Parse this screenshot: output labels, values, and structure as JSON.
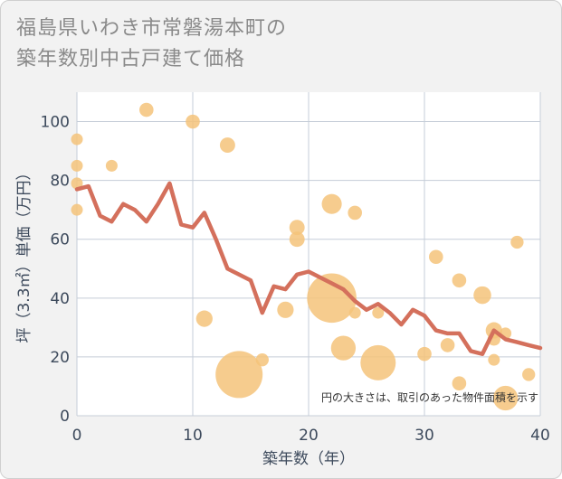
{
  "title_lines": [
    "福島県いわき市常磐湯本町の",
    "築年数別中古戸建て価格"
  ],
  "chart_data": {
    "type": "scatter",
    "xlabel": "築年数（年）",
    "ylabel": "坪（3.3㎡）単価（万円）",
    "xlim": [
      0,
      40
    ],
    "ylim": [
      0,
      110
    ],
    "xticks": [
      0,
      10,
      20,
      30,
      40
    ],
    "yticks": [
      0,
      20,
      40,
      60,
      80,
      100
    ],
    "grid": true,
    "annotation": "円の大きさは、取引のあった物件面積を示す",
    "colors": {
      "bubble": "#f5c37a",
      "line": "#d4705c",
      "grid": "#c5cdd8",
      "background": "#ffffff"
    },
    "bubbles": [
      {
        "x": 0,
        "y": 94,
        "s": 1
      },
      {
        "x": 0,
        "y": 85,
        "s": 1
      },
      {
        "x": 0,
        "y": 79,
        "s": 1
      },
      {
        "x": 0,
        "y": 70,
        "s": 1
      },
      {
        "x": 3,
        "y": 85,
        "s": 1
      },
      {
        "x": 6,
        "y": 104,
        "s": 1.2
      },
      {
        "x": 10,
        "y": 100,
        "s": 1.2
      },
      {
        "x": 11,
        "y": 33,
        "s": 1.4
      },
      {
        "x": 13,
        "y": 92,
        "s": 1.3
      },
      {
        "x": 14,
        "y": 14,
        "s": 4
      },
      {
        "x": 16,
        "y": 19,
        "s": 1.1
      },
      {
        "x": 18,
        "y": 36,
        "s": 1.4
      },
      {
        "x": 19,
        "y": 64,
        "s": 1.3
      },
      {
        "x": 19,
        "y": 60,
        "s": 1.3
      },
      {
        "x": 22,
        "y": 72,
        "s": 1.7
      },
      {
        "x": 22,
        "y": 40,
        "s": 4.2
      },
      {
        "x": 23,
        "y": 23,
        "s": 2.1
      },
      {
        "x": 24,
        "y": 69,
        "s": 1.2
      },
      {
        "x": 24,
        "y": 35,
        "s": 1
      },
      {
        "x": 26,
        "y": 18,
        "s": 3
      },
      {
        "x": 26,
        "y": 35,
        "s": 1
      },
      {
        "x": 30,
        "y": 21,
        "s": 1.2
      },
      {
        "x": 31,
        "y": 54,
        "s": 1.2
      },
      {
        "x": 32,
        "y": 24,
        "s": 1.2
      },
      {
        "x": 33,
        "y": 46,
        "s": 1.2
      },
      {
        "x": 33,
        "y": 11,
        "s": 1.2
      },
      {
        "x": 35,
        "y": 41,
        "s": 1.5
      },
      {
        "x": 36,
        "y": 29,
        "s": 1.4
      },
      {
        "x": 36,
        "y": 26,
        "s": 1.1
      },
      {
        "x": 36,
        "y": 19,
        "s": 1
      },
      {
        "x": 37,
        "y": 6,
        "s": 2.1
      },
      {
        "x": 37,
        "y": 28,
        "s": 1
      },
      {
        "x": 38,
        "y": 59,
        "s": 1.1
      },
      {
        "x": 39,
        "y": 14,
        "s": 1.1
      }
    ],
    "line": {
      "x": [
        0,
        1,
        2,
        3,
        4,
        5,
        6,
        7,
        8,
        9,
        10,
        11,
        12,
        13,
        14,
        15,
        16,
        17,
        18,
        19,
        20,
        21,
        22,
        23,
        24,
        25,
        26,
        27,
        28,
        29,
        30,
        31,
        32,
        33,
        34,
        35,
        36,
        37,
        38,
        39,
        40
      ],
      "y": [
        77,
        78,
        68,
        66,
        72,
        70,
        66,
        72,
        79,
        65,
        64,
        69,
        60,
        50,
        48,
        46,
        35,
        44,
        43,
        48,
        49,
        47,
        45,
        43,
        39,
        36,
        38,
        35,
        31,
        36,
        34,
        29,
        28,
        28,
        22,
        21,
        29,
        26,
        25,
        24,
        23
      ]
    }
  }
}
